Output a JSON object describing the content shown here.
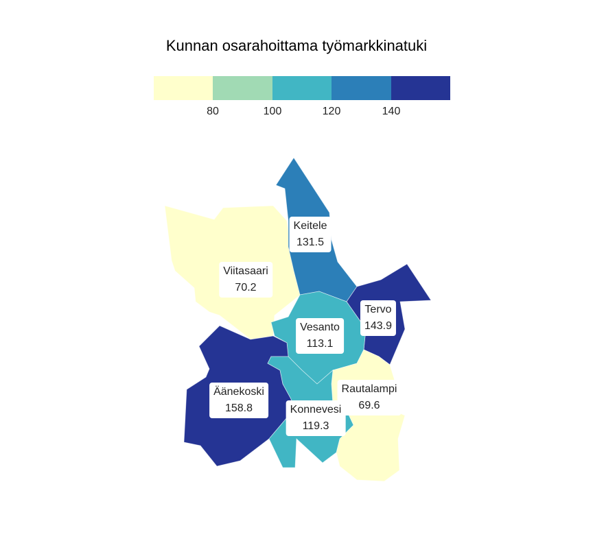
{
  "title": "Kunnan osarahoittama työmarkkinatuki",
  "legend": {
    "colors": [
      "#ffffcc",
      "#a1dab4",
      "#41b6c4",
      "#2c7fb8",
      "#253494"
    ],
    "ticks": [
      "80",
      "100",
      "120",
      "140"
    ]
  },
  "regions": [
    {
      "name": "Keitele",
      "value": "131.5",
      "color": "#2c7fb8"
    },
    {
      "name": "Viitasaari",
      "value": "70.2",
      "color": "#ffffcc"
    },
    {
      "name": "Tervo",
      "value": "143.9",
      "color": "#253494"
    },
    {
      "name": "Vesanto",
      "value": "113.1",
      "color": "#41b6c4"
    },
    {
      "name": "Äänekoski",
      "value": "158.8",
      "color": "#253494"
    },
    {
      "name": "Rautalampi",
      "value": "69.6",
      "color": "#ffffcc"
    },
    {
      "name": "Konnevesi",
      "value": "119.3",
      "color": "#41b6c4"
    }
  ]
}
